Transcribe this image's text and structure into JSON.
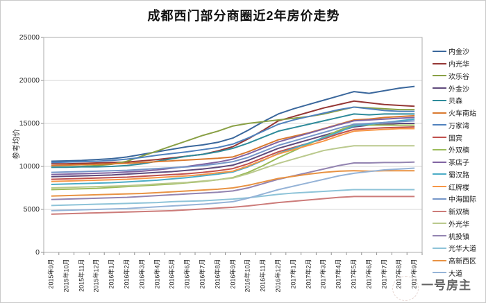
{
  "chart_data": {
    "type": "line",
    "title": "成都西门部分商圈近2年房价走势",
    "ylabel": "参考均价",
    "xlabel": "",
    "ylim": [
      0,
      25000
    ],
    "ytick_interval": 5000,
    "yticks": [
      0,
      5000,
      10000,
      15000,
      20000,
      25000
    ],
    "grid": "horizontal",
    "legend_position": "right",
    "categories": [
      "2015年9月",
      "2015年10月",
      "2015年11月",
      "2015年12月",
      "2016年1月",
      "2016年2月",
      "2016年3月",
      "2016年4月",
      "2016年5月",
      "2016年6月",
      "2016年7月",
      "2016年8月",
      "2016年9月",
      "2016年10月",
      "2016年11月",
      "2016年12月",
      "2017年1月",
      "2017年2月",
      "2017年3月",
      "2017年4月",
      "2017年5月",
      "2017年6月",
      "2017年7月",
      "2017年8月",
      "2017年9月"
    ],
    "series": [
      {
        "name": "内金沙",
        "color": "#3A679C",
        "values": [
          10600,
          10650,
          10700,
          10800,
          10900,
          11100,
          11400,
          11700,
          12000,
          12300,
          12500,
          12800,
          13300,
          14200,
          15200,
          16100,
          16700,
          17200,
          17700,
          18200,
          18700,
          18500,
          18800,
          19100,
          19300
        ]
      },
      {
        "name": "内光华",
        "color": "#953735",
        "values": [
          10300,
          10300,
          10350,
          10400,
          10450,
          10500,
          10650,
          10800,
          11000,
          11200,
          11400,
          11800,
          12300,
          13200,
          14200,
          15300,
          15800,
          16300,
          16800,
          17200,
          17600,
          17400,
          17200,
          17100,
          17000
        ]
      },
      {
        "name": "欢乐谷",
        "color": "#89A045",
        "values": [
          9900,
          9950,
          10000,
          10100,
          10250,
          10600,
          11200,
          11800,
          12400,
          13000,
          13600,
          14100,
          14700,
          15000,
          15200,
          15400,
          15600,
          15800,
          16100,
          16500,
          16900,
          16800,
          16700,
          16600,
          16600
        ]
      },
      {
        "name": "外金沙",
        "color": "#5F4A7B",
        "values": [
          8800,
          8850,
          8900,
          8950,
          9000,
          9100,
          9200,
          9300,
          9400,
          9550,
          9700,
          9900,
          10150,
          10700,
          11400,
          12100,
          12600,
          13100,
          13600,
          14100,
          14600,
          14800,
          14900,
          15000,
          15000
        ]
      },
      {
        "name": "贝森",
        "color": "#2E8B9A",
        "values": [
          9900,
          9900,
          9950,
          9950,
          10000,
          10100,
          10300,
          10600,
          10900,
          11200,
          11400,
          11700,
          12100,
          12700,
          13400,
          14100,
          14500,
          14900,
          15300,
          15700,
          16100,
          16000,
          16100,
          16100,
          16100
        ]
      },
      {
        "name": "火车南站",
        "color": "#D9792F",
        "values": [
          10100,
          10150,
          10200,
          10250,
          10300,
          10350,
          10450,
          10550,
          10650,
          10750,
          10850,
          10950,
          11100,
          11700,
          12400,
          13100,
          13500,
          13900,
          14400,
          14900,
          15400,
          15500,
          15700,
          15800,
          15900
        ]
      },
      {
        "name": "万家湾",
        "color": "#4F81BD",
        "values": [
          10450,
          10500,
          10550,
          10600,
          10700,
          10850,
          11050,
          11300,
          11500,
          11700,
          11950,
          12200,
          12600,
          13300,
          14100,
          14900,
          15400,
          15800,
          16200,
          16600,
          16900,
          16700,
          16500,
          16400,
          16400
        ]
      },
      {
        "name": "国宾",
        "color": "#C0504D",
        "values": [
          8500,
          8550,
          8600,
          8650,
          8700,
          8750,
          8850,
          8950,
          9050,
          9150,
          9300,
          9500,
          9750,
          10300,
          11000,
          11700,
          12200,
          12700,
          13200,
          13800,
          14300,
          14400,
          14500,
          14550,
          14600
        ]
      },
      {
        "name": "外双楠",
        "color": "#9BBB59",
        "values": [
          7300,
          7350,
          7400,
          7450,
          7550,
          7650,
          7750,
          7850,
          7950,
          8100,
          8250,
          8450,
          8700,
          9300,
          10100,
          11000,
          11800,
          12600,
          13400,
          14200,
          14800,
          14800,
          14800,
          14800,
          14800
        ]
      },
      {
        "name": "茶店子",
        "color": "#8064A2",
        "values": [
          9050,
          9100,
          9150,
          9200,
          9250,
          9350,
          9450,
          9600,
          9800,
          10000,
          10250,
          10500,
          10850,
          11450,
          12150,
          12850,
          13350,
          13850,
          14350,
          14850,
          15300,
          15400,
          15500,
          15600,
          15700
        ]
      },
      {
        "name": "蜀汉路",
        "color": "#4BACC6",
        "values": [
          7900,
          7950,
          8000,
          8050,
          8100,
          8200,
          8300,
          8400,
          8550,
          8700,
          8900,
          9100,
          9350,
          9950,
          10700,
          11500,
          12100,
          12700,
          13350,
          14000,
          14700,
          14900,
          15100,
          15300,
          15500
        ]
      },
      {
        "name": "红牌楼",
        "color": "#F79646",
        "values": [
          8250,
          8300,
          8350,
          8400,
          8450,
          8500,
          8600,
          8700,
          8800,
          8900,
          9050,
          9250,
          9450,
          10050,
          10750,
          11450,
          11950,
          12450,
          12950,
          13550,
          14100,
          14200,
          14300,
          14400,
          14400
        ]
      },
      {
        "name": "中海国际",
        "color": "#7596C8",
        "values": [
          9300,
          9350,
          9400,
          9450,
          9500,
          9550,
          9650,
          9750,
          9850,
          9950,
          10100,
          10300,
          10550,
          11050,
          11750,
          12450,
          12950,
          13450,
          13950,
          14450,
          14900,
          15000,
          15100,
          15200,
          15300
        ]
      },
      {
        "name": "新双楠",
        "color": "#CC7B79",
        "values": [
          4450,
          4500,
          4550,
          4600,
          4650,
          4700,
          4750,
          4800,
          4850,
          4950,
          5050,
          5150,
          5250,
          5400,
          5600,
          5800,
          5950,
          6100,
          6250,
          6400,
          6500,
          6500,
          6500,
          6500,
          6500
        ]
      },
      {
        "name": "外光华",
        "color": "#BAC98D",
        "values": [
          7500,
          7550,
          7600,
          7650,
          7700,
          7750,
          7850,
          7950,
          8050,
          8150,
          8300,
          8450,
          8650,
          9150,
          9750,
          10350,
          10850,
          11350,
          11850,
          12150,
          12400,
          12400,
          12400,
          12400,
          12400
        ]
      },
      {
        "name": "机投镇",
        "color": "#9384B1",
        "values": [
          6150,
          6200,
          6250,
          6300,
          6350,
          6400,
          6500,
          6600,
          6700,
          6800,
          6900,
          7000,
          7150,
          7500,
          8000,
          8500,
          8900,
          9300,
          9700,
          10100,
          10400,
          10400,
          10450,
          10450,
          10500
        ]
      },
      {
        "name": "光华大道",
        "color": "#8DC3D8",
        "values": [
          5450,
          5500,
          5550,
          5600,
          5650,
          5700,
          5750,
          5800,
          5900,
          5950,
          6000,
          6100,
          6200,
          6350,
          6550,
          6750,
          6900,
          7000,
          7100,
          7200,
          7300,
          7300,
          7300,
          7300,
          7300
        ]
      },
      {
        "name": "高新西区",
        "color": "#E89242",
        "values": [
          6550,
          6600,
          6650,
          6700,
          6750,
          6800,
          6850,
          6950,
          7050,
          7150,
          7250,
          7350,
          7500,
          7800,
          8200,
          8600,
          8850,
          9100,
          9300,
          9450,
          9500,
          9450,
          9500,
          9500,
          9500
        ]
      },
      {
        "name": "大道",
        "color": "#95B3D7",
        "values": [
          4850,
          4900,
          4950,
          5000,
          5050,
          5100,
          5200,
          5300,
          5400,
          5500,
          5600,
          5750,
          5900,
          6300,
          6800,
          7300,
          7700,
          8100,
          8500,
          8900,
          9200,
          9400,
          9600,
          9700,
          9800
        ]
      }
    ]
  },
  "watermark": {
    "text": "一号房主"
  }
}
